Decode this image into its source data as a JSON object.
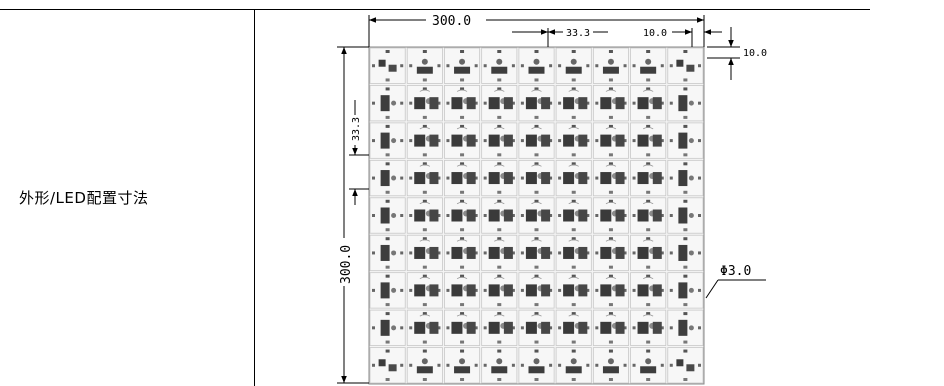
{
  "row_label": "外形/LED配置寸法",
  "dimensions": {
    "width": "300.0",
    "height": "300.0",
    "pitch_x": "33.3",
    "pitch_y": "33.3",
    "margin_x": "10.0",
    "margin_y": "10.0",
    "hole": "Φ3.0"
  },
  "board": {
    "columns": 9,
    "rows": 9
  }
}
